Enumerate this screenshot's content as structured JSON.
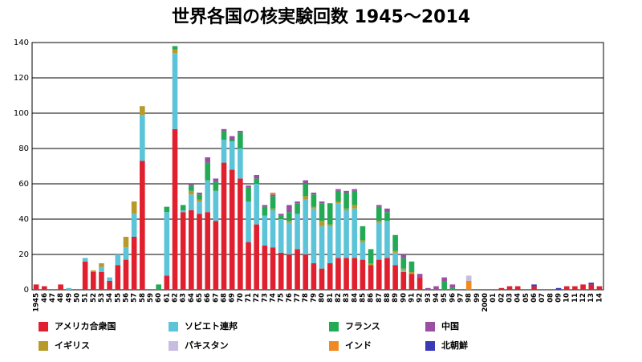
{
  "chart_data": {
    "type": "stacked_bar",
    "title": "世界各国の核実験回数 1945〜2014",
    "categories": [
      "1945",
      "46",
      "47",
      "48",
      "49",
      "50",
      "51",
      "52",
      "53",
      "54",
      "55",
      "56",
      "57",
      "58",
      "59",
      "60",
      "61",
      "62",
      "63",
      "64",
      "65",
      "66",
      "67",
      "68",
      "69",
      "70",
      "71",
      "72",
      "73",
      "74",
      "75",
      "76",
      "77",
      "78",
      "79",
      "80",
      "81",
      "82",
      "83",
      "84",
      "85",
      "86",
      "87",
      "88",
      "89",
      "90",
      "91",
      "92",
      "93",
      "94",
      "95",
      "96",
      "97",
      "98",
      "99",
      "2000",
      "01",
      "02",
      "03",
      "04",
      "05",
      "06",
      "07",
      "08",
      "09",
      "10",
      "11",
      "12",
      "13",
      "14"
    ],
    "series": [
      {
        "name": "アメリカ合衆国",
        "color": "#e0202e",
        "values": [
          3,
          2,
          0,
          3,
          0,
          0,
          16,
          10,
          10,
          5,
          14,
          17,
          30,
          73,
          0,
          0,
          8,
          91,
          44,
          45,
          43,
          44,
          39,
          72,
          68,
          63,
          27,
          37,
          25,
          24,
          21,
          20,
          23,
          20,
          15,
          12,
          15,
          18,
          18,
          18,
          17,
          14,
          17,
          18,
          14,
          10,
          9,
          7,
          0,
          0,
          0,
          0,
          0,
          0,
          0,
          0,
          0,
          1,
          2,
          2,
          0,
          2,
          0,
          0,
          0,
          2,
          2,
          3,
          3,
          2
        ]
      },
      {
        "name": "ソビエト連邦",
        "color": "#5bc4d8",
        "values": [
          0,
          0,
          0,
          0,
          1,
          0,
          2,
          0,
          3,
          2,
          6,
          7,
          13,
          26,
          0,
          0,
          36,
          43,
          1,
          9,
          7,
          18,
          17,
          13,
          16,
          17,
          23,
          23,
          17,
          21,
          19,
          18,
          20,
          31,
          31,
          24,
          21,
          31,
          27,
          28,
          10,
          0,
          21,
          21,
          7,
          1,
          0,
          0,
          0,
          0,
          0,
          0,
          0,
          0,
          0,
          0,
          0,
          0,
          0,
          0,
          0,
          0,
          0,
          0,
          0,
          0,
          0,
          0,
          0,
          0
        ]
      },
      {
        "name": "イギリス",
        "color": "#b89a2a",
        "values": [
          0,
          0,
          0,
          0,
          0,
          0,
          0,
          1,
          2,
          0,
          0,
          6,
          7,
          5,
          0,
          0,
          0,
          2,
          0,
          2,
          1,
          0,
          0,
          0,
          0,
          0,
          0,
          0,
          0,
          1,
          0,
          1,
          0,
          2,
          1,
          3,
          1,
          1,
          1,
          2,
          1,
          1,
          1,
          0,
          1,
          1,
          1,
          0,
          0,
          0,
          0,
          0,
          0,
          0,
          0,
          0,
          0,
          0,
          0,
          0,
          0,
          0,
          0,
          0,
          0,
          0,
          0,
          0,
          0,
          0
        ]
      },
      {
        "name": "フランス",
        "color": "#22aa55",
        "values": [
          0,
          0,
          0,
          0,
          0,
          0,
          0,
          0,
          0,
          0,
          0,
          0,
          0,
          0,
          0,
          3,
          3,
          2,
          3,
          3,
          3,
          10,
          5,
          5,
          1,
          9,
          8,
          3,
          5,
          7,
          2,
          5,
          6,
          7,
          7,
          10,
          12,
          6,
          9,
          8,
          8,
          8,
          8,
          5,
          9,
          6,
          6,
          0,
          0,
          0,
          5,
          1,
          0,
          0,
          0,
          0,
          0,
          0,
          0,
          0,
          0,
          0,
          0,
          0,
          0,
          0,
          0,
          0,
          0,
          0
        ]
      },
      {
        "name": "中国",
        "color": "#9b4fa0",
        "values": [
          0,
          0,
          0,
          0,
          0,
          0,
          0,
          0,
          0,
          0,
          0,
          0,
          0,
          0,
          0,
          0,
          0,
          0,
          0,
          1,
          1,
          3,
          2,
          1,
          2,
          1,
          1,
          2,
          1,
          1,
          1,
          4,
          1,
          2,
          1,
          1,
          0,
          1,
          1,
          1,
          0,
          0,
          1,
          2,
          0,
          2,
          0,
          2,
          1,
          2,
          2,
          2,
          0,
          0,
          0,
          0,
          0,
          0,
          0,
          0,
          0,
          0,
          0,
          0,
          0,
          0,
          0,
          0,
          0,
          0
        ]
      },
      {
        "name": "インド",
        "color": "#f08a20",
        "values": [
          0,
          0,
          0,
          0,
          0,
          0,
          0,
          0,
          0,
          0,
          0,
          0,
          0,
          0,
          0,
          0,
          0,
          0,
          0,
          0,
          0,
          0,
          0,
          0,
          0,
          0,
          0,
          0,
          0,
          1,
          0,
          0,
          0,
          0,
          0,
          0,
          0,
          0,
          0,
          0,
          0,
          0,
          0,
          0,
          0,
          0,
          0,
          0,
          0,
          0,
          0,
          0,
          0,
          5,
          0,
          0,
          0,
          0,
          0,
          0,
          0,
          0,
          0,
          0,
          0,
          0,
          0,
          0,
          0,
          0
        ]
      },
      {
        "name": "パキスタン",
        "color": "#c8bde0",
        "values": [
          0,
          0,
          0,
          0,
          0,
          0,
          0,
          0,
          0,
          0,
          0,
          0,
          0,
          0,
          0,
          0,
          0,
          0,
          0,
          0,
          0,
          0,
          0,
          0,
          0,
          0,
          0,
          0,
          0,
          0,
          0,
          0,
          0,
          0,
          0,
          0,
          0,
          0,
          0,
          0,
          0,
          0,
          0,
          0,
          0,
          0,
          0,
          0,
          0,
          0,
          0,
          0,
          0,
          3,
          0,
          0,
          0,
          0,
          0,
          0,
          0,
          0,
          0,
          0,
          0,
          0,
          0,
          0,
          0,
          0
        ]
      },
      {
        "name": "北朝鮮",
        "color": "#3a3ab8",
        "values": [
          0,
          0,
          0,
          0,
          0,
          0,
          0,
          0,
          0,
          0,
          0,
          0,
          0,
          0,
          0,
          0,
          0,
          0,
          0,
          0,
          0,
          0,
          0,
          0,
          0,
          0,
          0,
          0,
          0,
          0,
          0,
          0,
          0,
          0,
          0,
          0,
          0,
          0,
          0,
          0,
          0,
          0,
          0,
          0,
          0,
          0,
          0,
          0,
          0,
          0,
          0,
          0,
          0,
          0,
          0,
          0,
          0,
          0,
          0,
          0,
          0,
          1,
          0,
          0,
          1,
          0,
          0,
          0,
          1,
          0
        ]
      }
    ],
    "ylim": [
      0,
      140
    ],
    "yticks": [
      0,
      20,
      40,
      60,
      80,
      100,
      120,
      140
    ],
    "grid": true
  }
}
